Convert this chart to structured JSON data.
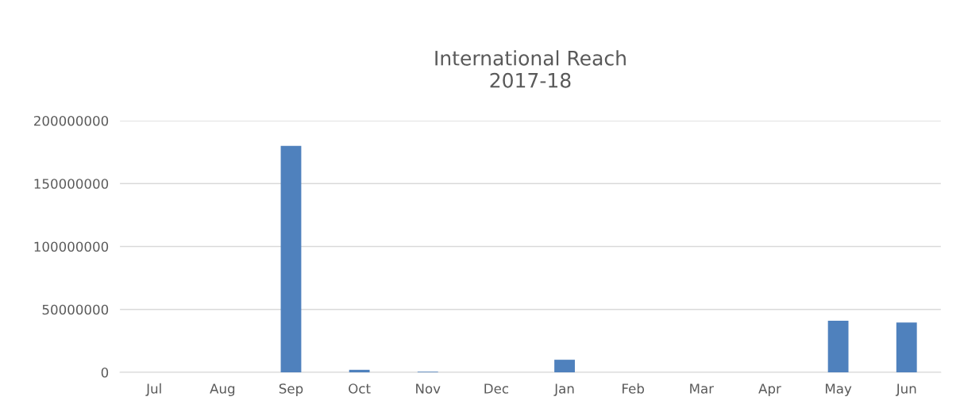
{
  "chart_data": {
    "type": "bar",
    "title": "International Reach\n2017-18",
    "categories": [
      "Jul",
      "Aug",
      "Sep",
      "Oct",
      "Nov",
      "Dec",
      "Jan",
      "Feb",
      "Mar",
      "Apr",
      "May",
      "Jun"
    ],
    "values": [
      0,
      0,
      180000000,
      2000000,
      500000,
      0,
      10000000,
      0,
      0,
      0,
      41000000,
      39500000
    ],
    "color": "#4f81bd",
    "ylim": [
      0,
      200000000
    ],
    "yticks": [
      0,
      50000000,
      100000000,
      150000000,
      200000000
    ],
    "grid": "y"
  }
}
